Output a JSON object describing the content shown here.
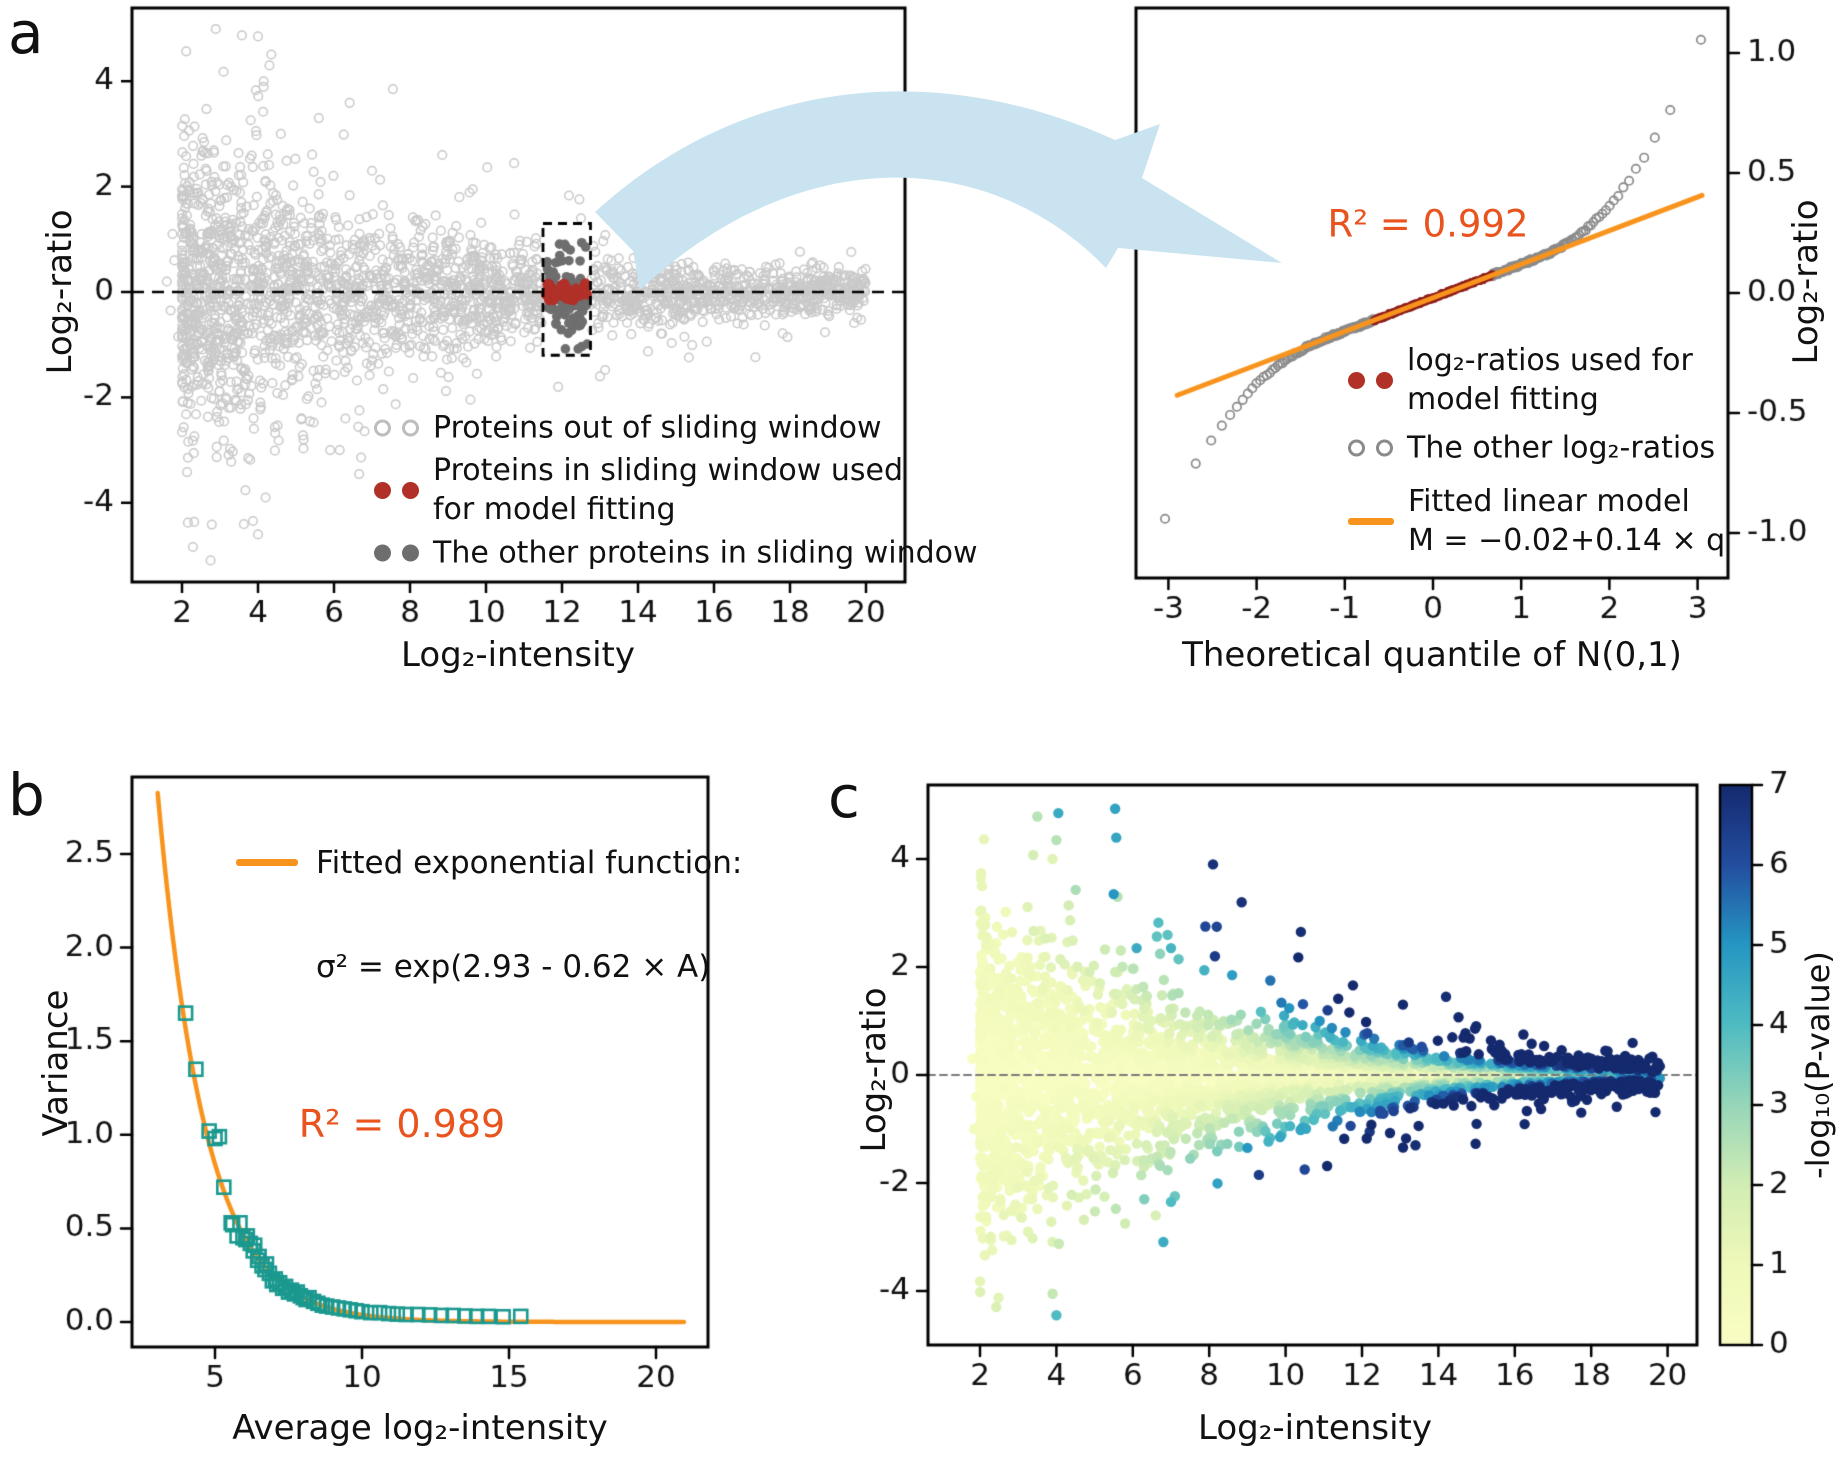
{
  "panel_labels": {
    "a": "a",
    "b": "b",
    "c": "c"
  },
  "colors": {
    "axis": "#000000",
    "text": "#111111",
    "gray_open": "#c9c9c9",
    "gray_fill": "#6e6e6e",
    "red": "#b13028",
    "red_dark": "#8e1f1c",
    "orange": "#f8941d",
    "orange_text": "#e8531e",
    "teal": "#1b998f",
    "arrow_blue": "#c9e4f0",
    "qq_gray": "#8a8a8a",
    "dash_gray": "#7a7a7a"
  },
  "chart_data": [
    {
      "panel": "a",
      "id": "ma-sliding-window",
      "type": "scatter",
      "xlabel": "Log₂-intensity",
      "ylabel": "Log₂-ratio",
      "x_ticks": [
        2,
        4,
        6,
        8,
        10,
        12,
        14,
        16,
        18,
        20
      ],
      "y_ticks": [
        4,
        2,
        0,
        -2,
        -4
      ],
      "xlim": [
        0.7,
        21.3
      ],
      "ylim": [
        -5.5,
        5.4
      ],
      "hline": 0,
      "window_box": {
        "x0": 11.5,
        "x1": 12.75,
        "y0": -1.2,
        "y1": 1.3
      },
      "legend": [
        {
          "marker": "open-circle",
          "label": "Proteins out of sliding window"
        },
        {
          "marker": "red-dot",
          "label": "Proteins in sliding window used\nfor model fitting"
        },
        {
          "marker": "gray-dot",
          "label": "The other proteins in sliding window"
        }
      ],
      "generator": {
        "seed": 7,
        "n": 2800,
        "x_pow": 1.55,
        "sigma": [
          1.32,
          0.155,
          0.1
        ],
        "wide_frac": 0.12,
        "wide_mult": 2.2
      },
      "outliers": [
        [
          4.0,
          4.85
        ],
        [
          4.3,
          4.3
        ],
        [
          4.15,
          4.0
        ],
        [
          7.55,
          3.85
        ],
        [
          5.6,
          3.3
        ],
        [
          4.6,
          3.0
        ],
        [
          8.85,
          2.6
        ],
        [
          7.0,
          2.3
        ],
        [
          9.3,
          1.8
        ],
        [
          4.0,
          -4.6
        ],
        [
          4.2,
          -3.9
        ],
        [
          5.9,
          -3.0
        ],
        [
          6.3,
          -2.4
        ],
        [
          5.2,
          -2.8
        ],
        [
          11.9,
          -1.8
        ],
        [
          13.0,
          -1.6
        ],
        [
          12.5,
          1.4
        ],
        [
          1.6,
          0.2
        ],
        [
          1.7,
          -0.35
        ],
        [
          1.8,
          0.6
        ],
        [
          1.9,
          -0.85
        ],
        [
          1.75,
          1.1
        ],
        [
          18.3,
          0.1
        ],
        [
          18.6,
          -0.15
        ],
        [
          18.9,
          0.22
        ],
        [
          19.1,
          -0.05
        ],
        [
          19.35,
          0.3
        ],
        [
          19.6,
          -0.25
        ],
        [
          19.8,
          0.05
        ],
        [
          18.4,
          -0.42
        ],
        [
          18.8,
          0.5
        ]
      ],
      "window_points": {
        "n_gray": 100,
        "n_red": 34,
        "x0": 11.56,
        "x1": 12.68,
        "gray_sd": 0.5,
        "red_half": 0.17
      }
    },
    {
      "panel": "a",
      "id": "qq-plot",
      "type": "qq",
      "xlabel": "Theoretical quantile of N(0,1)",
      "ylabel": "Log₂-ratio",
      "x_ticks": [
        -3,
        -2,
        -1,
        0,
        1,
        2,
        3
      ],
      "y_tick_vals": [
        1.0,
        0.5,
        0.0,
        -0.5,
        -1.0
      ],
      "y_tick_labels": [
        "1.0",
        "0.5",
        "0.0",
        "-0.5",
        "-1.0"
      ],
      "annotation": "R² = 0.992",
      "fit": {
        "intercept": -0.02,
        "slope": 0.14,
        "q_range": [
          -2.9,
          3.05
        ]
      },
      "qq": {
        "seed": 13,
        "n": 420,
        "tail_start": 1.2,
        "tail_up": 0.17,
        "tail_down": 0.13,
        "tail_pow": 2.2,
        "red_q": 0.675,
        "jitter": 0.012
      },
      "legend": [
        {
          "marker": "red-dot",
          "label": "log₂-ratios used for\nmodel fitting"
        },
        {
          "marker": "open-circle",
          "label": "The other log₂-ratios"
        },
        {
          "marker": "orange-line",
          "label": "Fitted linear model\nM = −0.02+0.14 × q"
        }
      ]
    },
    {
      "panel": "b",
      "id": "variance-fit",
      "type": "exp-fit",
      "xlabel": "Average log₂-intensity",
      "ylabel": "Variance",
      "x_ticks": [
        5,
        10,
        15,
        20
      ],
      "y_tick_vals": [
        0.0,
        0.5,
        1.0,
        1.5,
        2.0,
        2.5
      ],
      "y_tick_labels": [
        "0.0",
        "0.5",
        "1.0",
        "1.5",
        "2.0",
        "2.5"
      ],
      "annotation": "R² = 0.989",
      "legend_line1": "Fitted exponential function:",
      "legend_line2": "σ² = exp(2.93 - 0.62 × A)",
      "fit": {
        "a": 2.93,
        "b": 0.62,
        "x_range": [
          3.05,
          21.0
        ]
      },
      "points": [
        [
          4.0,
          1.65
        ],
        [
          4.35,
          1.35
        ],
        [
          4.8,
          1.02
        ],
        [
          5.0,
          0.98
        ],
        [
          5.15,
          0.99
        ],
        [
          5.3,
          0.72
        ],
        [
          5.55,
          0.53
        ],
        [
          5.6,
          0.52
        ],
        [
          5.75,
          0.46
        ],
        [
          5.85,
          0.53
        ],
        [
          5.95,
          0.45
        ],
        [
          6.05,
          0.44
        ],
        [
          6.1,
          0.46
        ],
        [
          6.2,
          0.42
        ],
        [
          6.3,
          0.38
        ],
        [
          6.35,
          0.41
        ],
        [
          6.45,
          0.33
        ],
        [
          6.5,
          0.35
        ],
        [
          6.6,
          0.3
        ],
        [
          6.7,
          0.28
        ],
        [
          6.75,
          0.31
        ],
        [
          6.85,
          0.26
        ],
        [
          6.95,
          0.22
        ],
        [
          7.05,
          0.23
        ],
        [
          7.1,
          0.2
        ],
        [
          7.2,
          0.21
        ],
        [
          7.3,
          0.18
        ],
        [
          7.4,
          0.19
        ],
        [
          7.5,
          0.16
        ],
        [
          7.6,
          0.17
        ],
        [
          7.7,
          0.15
        ],
        [
          7.8,
          0.16
        ],
        [
          7.9,
          0.14
        ],
        [
          8.0,
          0.13
        ],
        [
          8.1,
          0.12
        ],
        [
          8.2,
          0.13
        ],
        [
          8.35,
          0.11
        ],
        [
          8.5,
          0.1
        ],
        [
          8.65,
          0.09
        ],
        [
          8.8,
          0.085
        ],
        [
          9.0,
          0.08
        ],
        [
          9.2,
          0.075
        ],
        [
          9.4,
          0.07
        ],
        [
          9.6,
          0.065
        ],
        [
          9.8,
          0.06
        ],
        [
          10.0,
          0.055
        ],
        [
          10.3,
          0.05
        ],
        [
          10.6,
          0.05
        ],
        [
          10.9,
          0.045
        ],
        [
          11.2,
          0.042
        ],
        [
          11.5,
          0.04
        ],
        [
          11.9,
          0.04
        ],
        [
          12.3,
          0.038
        ],
        [
          12.7,
          0.035
        ],
        [
          13.1,
          0.035
        ],
        [
          13.5,
          0.032
        ],
        [
          13.9,
          0.03
        ],
        [
          14.3,
          0.03
        ],
        [
          14.8,
          0.028
        ],
        [
          15.4,
          0.03
        ]
      ]
    },
    {
      "panel": "c",
      "id": "ma-pvalue",
      "type": "scatter-colored",
      "xlabel": "Log₂-intensity",
      "ylabel": "Log₂-ratio",
      "x_ticks": [
        2,
        4,
        6,
        8,
        10,
        12,
        14,
        16,
        18,
        20
      ],
      "y_ticks": [
        4,
        2,
        0,
        -2,
        -4
      ],
      "hline": 0,
      "colorbar": {
        "label": "-log₁₀(P-value)",
        "ticks": [
          0,
          1,
          2,
          3,
          4,
          5,
          6,
          7
        ],
        "min": 0,
        "max": 7,
        "stops": [
          [
            0,
            "#fafdc3"
          ],
          [
            1,
            "#eff9b9"
          ],
          [
            2,
            "#d2edb4"
          ],
          [
            3,
            "#97d6b9"
          ],
          [
            4,
            "#4fbcc2"
          ],
          [
            5,
            "#2597c2"
          ],
          [
            6,
            "#234ea0"
          ],
          [
            7,
            "#152a6e"
          ]
        ]
      },
      "generator": {
        "seed": 11,
        "n": 3400,
        "x_pow": 1.55,
        "sigma": [
          1.3,
          0.16,
          0.075
        ],
        "wide_frac": 0.1,
        "wide_mult": 2.1,
        "p_scale": 0.78,
        "p_noise": 0.55,
        "sig_model": [
          1.465,
          0.31
        ]
      },
      "outliers": [
        [
          4.05,
          4.85,
          4.5
        ],
        [
          4.0,
          4.35,
          2.5
        ],
        [
          3.9,
          4.0,
          1.5
        ],
        [
          8.1,
          3.9,
          6.8
        ],
        [
          5.5,
          3.35,
          5.0
        ],
        [
          5.6,
          3.3,
          2.5
        ],
        [
          8.85,
          3.2,
          6.8
        ],
        [
          7.9,
          2.75,
          6.2
        ],
        [
          10.4,
          2.65,
          6.9
        ],
        [
          6.1,
          2.35,
          4.5
        ],
        [
          7.0,
          2.35,
          4.2
        ],
        [
          8.15,
          2.2,
          6.5
        ],
        [
          8.6,
          1.85,
          4.8
        ],
        [
          9.6,
          1.75,
          5.5
        ],
        [
          4.0,
          -4.45,
          4.0
        ],
        [
          3.9,
          -4.05,
          2.2
        ],
        [
          6.3,
          -2.3,
          3.3
        ],
        [
          7.0,
          -2.35,
          4.0
        ],
        [
          5.8,
          -2.75,
          2.0
        ],
        [
          6.6,
          -2.6,
          1.8
        ],
        [
          9.3,
          -1.85,
          6.5
        ],
        [
          10.5,
          -1.75,
          6.2
        ],
        [
          14.2,
          1.45,
          6.9
        ],
        [
          13.4,
          -1.3,
          6.9
        ],
        [
          9.0,
          -1.35,
          5.0
        ],
        [
          12.2,
          -1.05,
          6.6
        ],
        [
          11.1,
          1.2,
          6.4
        ],
        [
          18.2,
          0.12,
          7
        ],
        [
          18.6,
          -0.2,
          7
        ],
        [
          19.0,
          0.18,
          7
        ],
        [
          19.3,
          -0.12,
          7
        ],
        [
          19.6,
          0.05,
          7
        ],
        [
          18.9,
          -0.35,
          6.6
        ],
        [
          17.8,
          0.3,
          7
        ],
        [
          17.5,
          -0.5,
          6.8
        ],
        [
          1.8,
          0.3,
          0.3
        ],
        [
          1.9,
          -0.4,
          0.4
        ],
        [
          2.0,
          0.8,
          0.5
        ],
        [
          1.85,
          -1.0,
          0.6
        ]
      ]
    }
  ]
}
